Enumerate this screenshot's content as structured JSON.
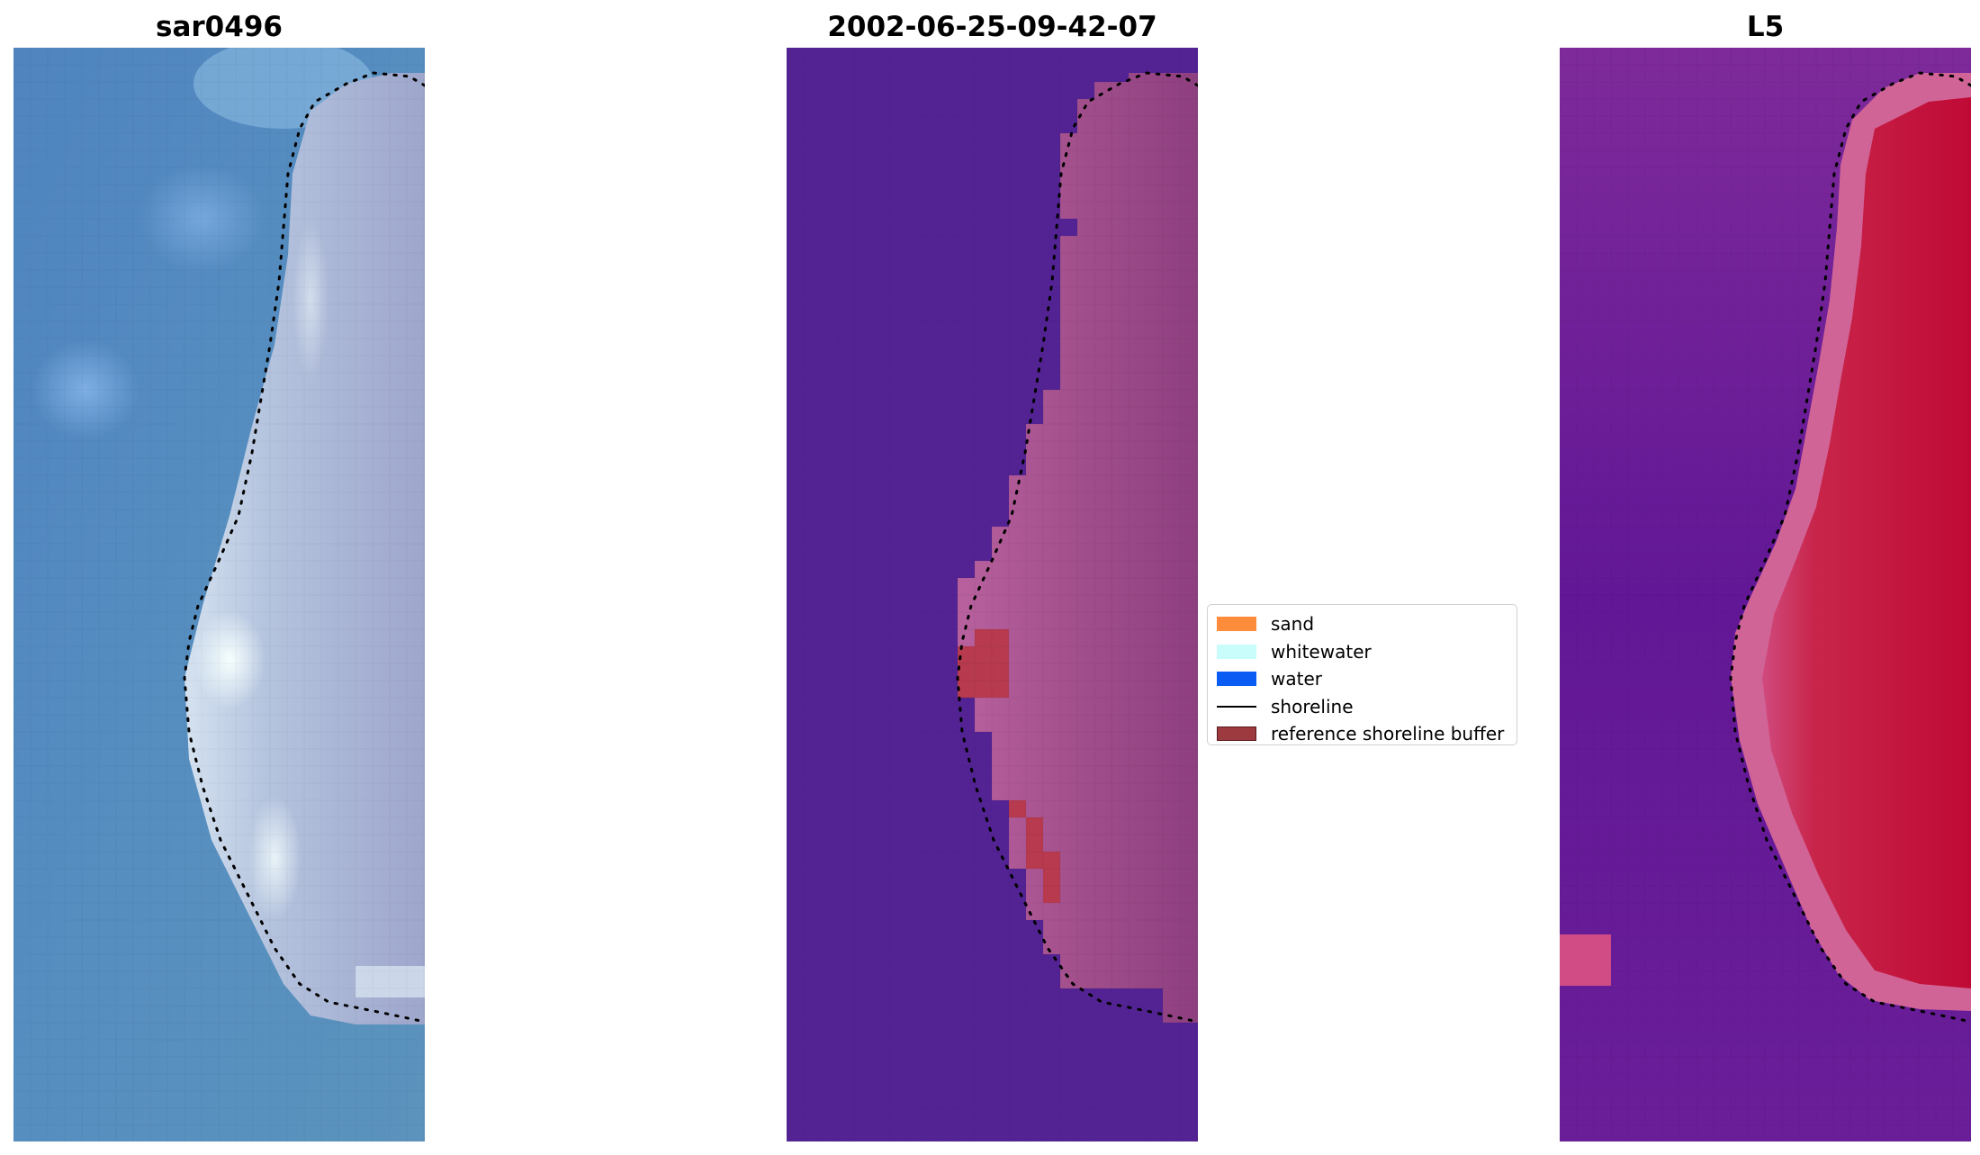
{
  "chart_data": [
    {
      "type": "image",
      "title": "sar0496",
      "shoreline": "dotted black line"
    },
    {
      "type": "image",
      "title": "2002-06-25-09-42-07",
      "shoreline": "dotted black line",
      "legend": {
        "placement": "right",
        "entries": [
          {
            "label": "sand",
            "kind": "patch",
            "color": "#ff8c3a"
          },
          {
            "label": "whitewater",
            "kind": "patch",
            "color": "#c8fdfc"
          },
          {
            "label": "water",
            "kind": "patch",
            "color": "#0b5cf2"
          },
          {
            "label": "shoreline",
            "kind": "line",
            "color": "#000000"
          },
          {
            "label": "reference shoreline buffer",
            "kind": "patch",
            "color": "#9c3a3f",
            "edge": "#5a1a1e"
          }
        ]
      }
    },
    {
      "type": "image",
      "title": "L5",
      "shoreline": "dotted black line"
    }
  ]
}
